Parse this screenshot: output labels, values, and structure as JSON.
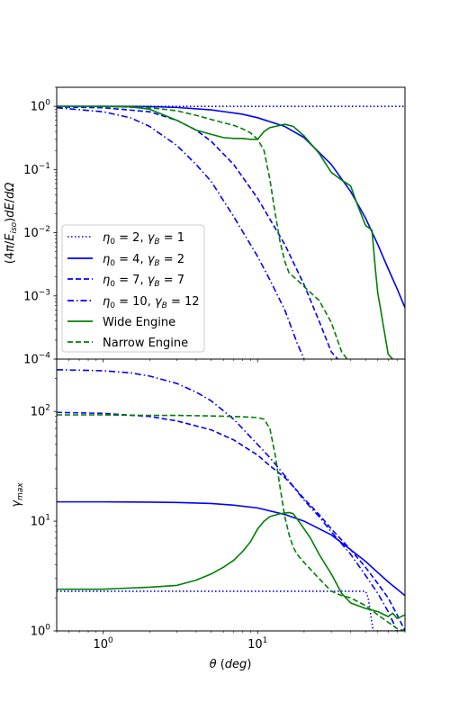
{
  "chart_data": [
    {
      "type": "line",
      "xscale": "log",
      "yscale": "log",
      "xlim": [
        0.5,
        90
      ],
      "ylim": [
        0.0001,
        2
      ],
      "xlabel": "",
      "ylabel": "(4π/E_iso)dE/dΩ",
      "ylabel_parts": {
        "pre": "(4",
        "pi": "π",
        "slash": "/",
        "E": "E",
        "sub": "iso",
        "post": ")",
        "tail": "dE",
        "slash2": "/",
        "tail2": "dΩ"
      },
      "yticks": [
        {
          "value": 1,
          "base": "10",
          "exp": "0"
        },
        {
          "value": 0.1,
          "base": "10",
          "exp": "−1"
        },
        {
          "value": 0.01,
          "base": "10",
          "exp": "−2"
        },
        {
          "value": 0.001,
          "base": "10",
          "exp": "−3"
        },
        {
          "value": 0.0001,
          "base": "10",
          "exp": "−4"
        }
      ],
      "legend_position": "lower-left",
      "series": [
        {
          "name": "η0 = 2, γB = 1",
          "legend": {
            "eta": "0",
            "etaval": "2",
            "gam": "B",
            "gamval": "1"
          },
          "color": "#0000ff",
          "style": "dotted",
          "x": [
            0.5,
            90
          ],
          "y": [
            1.0,
            1.0
          ]
        },
        {
          "name": "η0 = 4, γB = 2",
          "legend": {
            "eta": "0",
            "etaval": "4",
            "gam": "B",
            "gamval": "2"
          },
          "color": "#0000ff",
          "style": "solid",
          "x": [
            0.5,
            1,
            2,
            3,
            5,
            8,
            10,
            15,
            20,
            30,
            40,
            50,
            60,
            70,
            80,
            90
          ],
          "y": [
            1.0,
            1.0,
            0.99,
            0.96,
            0.88,
            0.75,
            0.66,
            0.48,
            0.32,
            0.12,
            0.045,
            0.017,
            0.0065,
            0.0027,
            0.0013,
            0.00065
          ]
        },
        {
          "name": "η0 = 7, γB = 7",
          "legend": {
            "eta": "0",
            "etaval": "7",
            "gam": "B",
            "gamval": "7"
          },
          "color": "#0000ff",
          "style": "dashed",
          "x": [
            0.5,
            1,
            2,
            3,
            4,
            5,
            7,
            10,
            15,
            20,
            25,
            30,
            33
          ],
          "y": [
            0.98,
            0.95,
            0.82,
            0.6,
            0.42,
            0.28,
            0.12,
            0.035,
            0.0065,
            0.0015,
            0.0004,
            0.00013,
            0.0001
          ]
        },
        {
          "name": "η0 = 10, γB = 12",
          "legend": {
            "eta": "0",
            "etaval": "10",
            "gam": "B",
            "gamval": "12"
          },
          "color": "#0000ff",
          "style": "dashdot",
          "x": [
            0.5,
            1,
            1.5,
            2,
            3,
            4,
            5,
            7,
            10,
            12,
            15,
            18,
            20
          ],
          "y": [
            0.95,
            0.82,
            0.66,
            0.48,
            0.24,
            0.12,
            0.065,
            0.018,
            0.0042,
            0.0018,
            0.0006,
            0.00018,
            0.0001
          ]
        },
        {
          "name": "Wide Engine",
          "legend": {
            "text": "Wide Engine"
          },
          "color": "#008000",
          "style": "solid",
          "x": [
            0.5,
            1,
            1.5,
            2,
            3,
            4,
            5,
            6,
            7,
            8,
            9,
            10,
            11,
            12,
            13,
            15,
            17,
            20,
            25,
            30,
            35,
            40,
            45,
            50,
            55,
            58,
            60,
            62,
            65,
            70,
            75
          ],
          "y": [
            1.0,
            1.0,
            0.98,
            0.9,
            0.6,
            0.42,
            0.36,
            0.32,
            0.31,
            0.31,
            0.3,
            0.3,
            0.4,
            0.46,
            0.48,
            0.52,
            0.48,
            0.34,
            0.18,
            0.09,
            0.068,
            0.055,
            0.025,
            0.013,
            0.011,
            0.0025,
            0.0011,
            0.0007,
            0.00035,
            0.00012,
            0.0001
          ]
        },
        {
          "name": "Narrow Engine",
          "legend": {
            "text": "Narrow Engine"
          },
          "color": "#008000",
          "style": "dashed",
          "x": [
            0.5,
            1,
            2,
            3,
            4,
            5,
            6,
            7,
            8,
            9,
            10,
            11,
            12,
            13,
            14,
            15,
            16,
            18,
            20,
            25,
            30,
            35,
            38
          ],
          "y": [
            1.0,
            1.0,
            0.95,
            0.85,
            0.72,
            0.62,
            0.55,
            0.5,
            0.44,
            0.38,
            0.3,
            0.2,
            0.07,
            0.02,
            0.007,
            0.0035,
            0.0023,
            0.0018,
            0.0014,
            0.00085,
            0.00038,
            0.00013,
            0.0001
          ]
        }
      ]
    },
    {
      "type": "line",
      "xscale": "log",
      "yscale": "log",
      "xlim": [
        0.5,
        90
      ],
      "ylim": [
        1,
        300
      ],
      "xlabel": "θ (deg)",
      "xlabel_parts": {
        "theta": "θ",
        "open": " (",
        "unit": "deg",
        "close": ")"
      },
      "ylabel": "γmax",
      "ylabel_parts": {
        "gam": "γ",
        "sub": "max"
      },
      "xticks": [
        {
          "value": 1,
          "base": "10",
          "exp": "0"
        },
        {
          "value": 10,
          "base": "10",
          "exp": "1"
        }
      ],
      "yticks": [
        {
          "value": 1,
          "base": "10",
          "exp": "0"
        },
        {
          "value": 10,
          "base": "10",
          "exp": "1"
        },
        {
          "value": 100,
          "base": "10",
          "exp": "2"
        }
      ],
      "series": [
        {
          "name": "η0 = 2, γB = 1",
          "color": "#0000ff",
          "style": "dotted",
          "x": [
            0.5,
            50,
            52,
            54,
            56,
            90
          ],
          "y": [
            2.3,
            2.3,
            2.0,
            1.4,
            1.0,
            1.0
          ]
        },
        {
          "name": "η0 = 4, γB = 2",
          "color": "#0000ff",
          "style": "solid",
          "x": [
            0.5,
            1,
            2,
            3,
            5,
            7,
            10,
            15,
            20,
            30,
            40,
            50,
            60,
            70,
            80,
            90
          ],
          "y": [
            15,
            15,
            14.9,
            14.8,
            14.5,
            14.0,
            13.2,
            11.5,
            10.0,
            7.5,
            5.5,
            4.3,
            3.4,
            2.8,
            2.4,
            2.1
          ]
        },
        {
          "name": "η0 = 7, γB = 7",
          "color": "#0000ff",
          "style": "dashed",
          "x": [
            0.5,
            1,
            2,
            3,
            5,
            7,
            10,
            12,
            15,
            18,
            20,
            25,
            30,
            40,
            50,
            60,
            70,
            80,
            90
          ],
          "y": [
            98,
            96,
            90,
            82,
            68,
            55,
            40,
            32,
            25,
            19,
            16,
            11.5,
            8.5,
            5.5,
            3.8,
            2.7,
            2.0,
            1.4,
            1.0
          ]
        },
        {
          "name": "η0 = 10, γB = 12",
          "color": "#0000ff",
          "style": "dashdot",
          "x": [
            0.5,
            1,
            1.5,
            2,
            3,
            4,
            5,
            7,
            10,
            12,
            15,
            20,
            25,
            30,
            40,
            50,
            60,
            70,
            80
          ],
          "y": [
            240,
            235,
            225,
            210,
            180,
            150,
            125,
            85,
            50,
            38,
            26,
            15.5,
            11,
            8,
            5,
            3.2,
            2.2,
            1.5,
            1.0
          ]
        },
        {
          "name": "Wide Engine",
          "color": "#008000",
          "style": "solid",
          "x": [
            0.5,
            1,
            2,
            3,
            4,
            5,
            6,
            7,
            8,
            9,
            10,
            11,
            12,
            14,
            16,
            17,
            18,
            20,
            22,
            25,
            30,
            35,
            40,
            50,
            60,
            70,
            75,
            80,
            90
          ],
          "y": [
            2.4,
            2.4,
            2.5,
            2.6,
            2.9,
            3.3,
            3.8,
            4.4,
            5.3,
            6.5,
            8.5,
            10.0,
            11.0,
            11.7,
            12.0,
            11.7,
            10.5,
            8.5,
            7.0,
            5.0,
            3.3,
            2.2,
            1.8,
            1.6,
            1.5,
            1.35,
            1.45,
            1.3,
            1.4
          ]
        },
        {
          "name": "Narrow Engine",
          "color": "#008000",
          "style": "dashed",
          "x": [
            0.5,
            1,
            2,
            3,
            5,
            7,
            10,
            11,
            12,
            13,
            14,
            15,
            16,
            17,
            18,
            20,
            25,
            30,
            35,
            40,
            50,
            60,
            70,
            80,
            90
          ],
          "y": [
            93,
            93,
            92,
            92,
            91,
            90,
            88,
            85,
            70,
            40,
            20,
            11,
            7.5,
            5.8,
            5.0,
            4.2,
            3.0,
            2.3,
            2.1,
            2.0,
            1.7,
            1.4,
            1.2,
            1.05,
            1.0
          ]
        }
      ]
    }
  ]
}
